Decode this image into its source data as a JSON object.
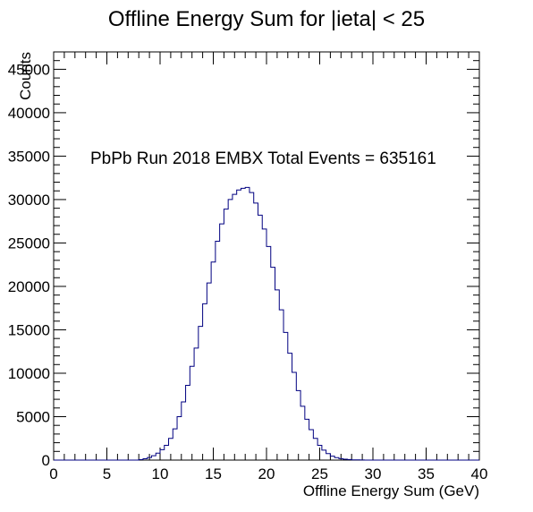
{
  "chart_data": {
    "type": "histogram",
    "title": "Offline Energy Sum for |ieta| < 25",
    "xlabel": "Offline Energy Sum (GeV)",
    "ylabel": "Counts",
    "annotation": "PbPb Run 2018 EMBX Total Events = 635161",
    "xlim": [
      0,
      40
    ],
    "ylim": [
      0,
      47000
    ],
    "bin_width": 0.4,
    "x_ticks": [
      0,
      5,
      10,
      15,
      20,
      25,
      30,
      35,
      40
    ],
    "y_ticks": [
      0,
      5000,
      10000,
      15000,
      20000,
      25000,
      30000,
      35000,
      40000,
      45000
    ],
    "x_tick_labels": [
      "0",
      "5",
      "10",
      "15",
      "20",
      "25",
      "30",
      "35",
      "40"
    ],
    "y_tick_labels": [
      "0",
      "5000",
      "10000",
      "15000",
      "20000",
      "25000",
      "30000",
      "35000",
      "40000",
      "45000"
    ],
    "bin_edges": [
      8.0,
      8.4,
      8.8,
      9.2,
      9.6,
      10.0,
      10.4,
      10.8,
      11.2,
      11.6,
      12.0,
      12.4,
      12.8,
      13.2,
      13.6,
      14.0,
      14.4,
      14.8,
      15.2,
      15.6,
      16.0,
      16.4,
      16.8,
      17.2,
      17.6,
      18.0,
      18.4,
      18.8,
      19.2,
      19.6,
      20.0,
      20.4,
      20.8,
      21.2,
      21.6,
      22.0,
      22.4,
      22.8,
      23.2,
      23.6,
      24.0,
      24.4,
      24.8,
      25.2,
      25.6,
      26.0,
      26.4,
      26.8,
      27.2,
      27.6,
      28.0,
      28.4,
      28.8,
      29.2,
      29.6,
      30.0,
      30.4,
      30.8,
      31.2,
      31.6,
      32.0
    ],
    "series": [
      {
        "color": "#000080",
        "values": [
          50,
          150,
          300,
          500,
          800,
          1200,
          1700,
          2500,
          3600,
          5000,
          6700,
          8600,
          10800,
          12900,
          15400,
          18000,
          20400,
          22800,
          25200,
          27200,
          28900,
          30000,
          30600,
          31100,
          31300,
          31400,
          30800,
          29600,
          28200,
          26600,
          24600,
          22200,
          19600,
          17300,
          14700,
          12300,
          10100,
          8000,
          6200,
          4700,
          3500,
          2500,
          1700,
          1150,
          750,
          450,
          280,
          170,
          100,
          60,
          30,
          20,
          10,
          5,
          0,
          0,
          0,
          0,
          0,
          0
        ]
      }
    ]
  }
}
